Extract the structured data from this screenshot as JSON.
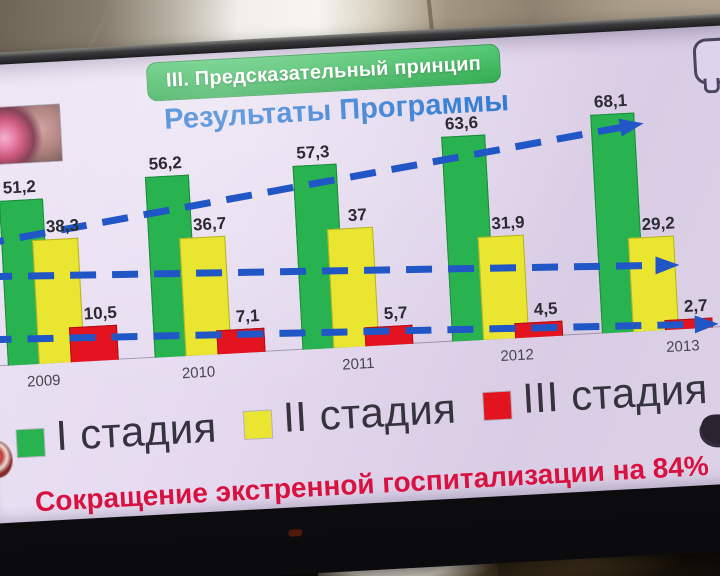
{
  "slide": {
    "badge": "III. Предсказательный принцип",
    "subtitle": "Результаты Программы",
    "footer": "Сокращение экстренной госпитализации на 84%"
  },
  "chart_data": {
    "type": "bar",
    "title": "Результаты Программы",
    "categories": [
      "2009",
      "2010",
      "2011",
      "2012",
      "2013"
    ],
    "series": [
      {
        "name": "I стадия",
        "color": "#29b350",
        "border": "#1d8a3c",
        "values": [
          51.2,
          56.2,
          57.3,
          63.6,
          68.1
        ],
        "labels": [
          "51,2",
          "56,2",
          "57,3",
          "63,6",
          "68,1"
        ]
      },
      {
        "name": "II стадия",
        "color": "#e9e531",
        "border": "#b6b226",
        "values": [
          38.3,
          36.7,
          37,
          31.9,
          29.2
        ],
        "labels": [
          "38,3",
          "36,7",
          "37",
          "31,9",
          "29,2"
        ]
      },
      {
        "name": "III стадия",
        "color": "#e3141f",
        "border": "#ad0d14",
        "values": [
          10.5,
          7.1,
          5.7,
          4.5,
          2.7
        ],
        "labels": [
          "10,5",
          "7,1",
          "5,7",
          "4,5",
          "2,7"
        ]
      }
    ],
    "ylim": [
      0,
      75
    ],
    "grid": false,
    "legend_position": "bottom",
    "annotations": [
      {
        "type": "trend-arrow",
        "series": "I стадия",
        "direction": "up"
      },
      {
        "type": "trend-arrow",
        "series": "II стадия",
        "direction": "slightly-down"
      },
      {
        "type": "trend-arrow",
        "series": "III стадия",
        "direction": "slightly-down"
      }
    ],
    "footer": "Сокращение экстренной госпитализации на 84%"
  },
  "colors": {
    "trend_blue": "#2156c6",
    "badge_green": "#2cb34c",
    "subtitle_blue": "#1d6fce",
    "footer_red": "#d81240"
  }
}
